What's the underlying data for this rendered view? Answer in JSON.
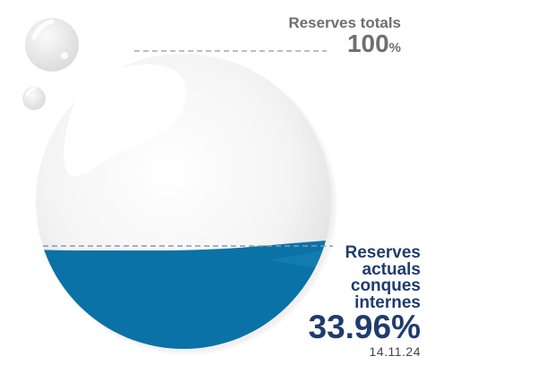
{
  "gauge": {
    "fill_fraction": 0.3396,
    "water_color": "#0a72a6",
    "glass_color": "#f2f2f2"
  },
  "total": {
    "label": "Reserves totals",
    "value": "100",
    "unit": "%"
  },
  "current": {
    "label_lines": [
      "Reserves",
      "actuals",
      "conques",
      "internes"
    ],
    "value": "33.96%",
    "date": "14.11.24"
  }
}
